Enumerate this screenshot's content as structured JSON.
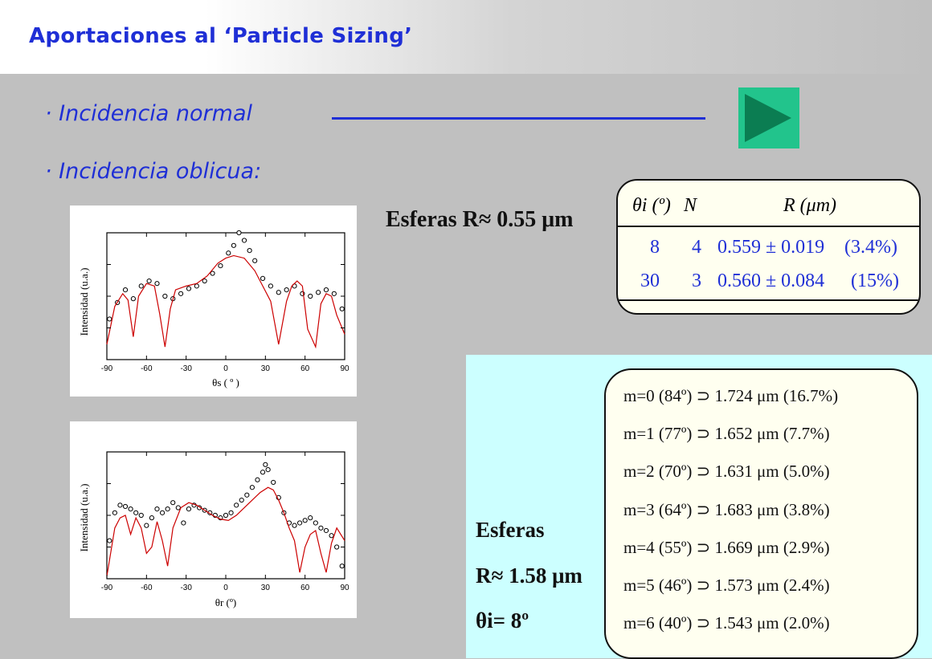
{
  "title": "Aportaciones al ‘Particle Sizing’",
  "bullets": [
    {
      "text": "· Incidencia normal"
    },
    {
      "text": "· Incidencia oblicua:"
    }
  ],
  "play_button": {
    "icon": "play-icon"
  },
  "spheres_small": {
    "label": "Esferas R≈ 0.55 μm"
  },
  "table_small": {
    "headers": [
      "θi (º)",
      "N",
      "R (μm)"
    ],
    "rows": [
      {
        "theta": "8",
        "n": "4",
        "r": "0.559 ± 0.019",
        "pct": "(3.4%)"
      },
      {
        "theta": "30",
        "n": "3",
        "r": "0.560 ± 0.084",
        "pct": "(15%)"
      }
    ]
  },
  "spheres_large": {
    "line1": "Esferas",
    "line2": "R≈ 1.58 μm",
    "line3": "θi= 8º"
  },
  "results": [
    {
      "text": "m=0 (84º) ⊃ 1.724 μm (16.7%)"
    },
    {
      "text": "m=1 (77º) ⊃ 1.652 μm (7.7%)"
    },
    {
      "text": "m=2 (70º) ⊃ 1.631 μm (5.0%)"
    },
    {
      "text": "m=3 (64º) ⊃ 1.683 μm (3.8%)"
    },
    {
      "text": "m=4 (55º) ⊃ 1.669 μm (2.9%)"
    },
    {
      "text": "m=5 (46º) ⊃ 1.573 μm (2.4%)"
    },
    {
      "text": "m=6 (40º) ⊃ 1.543 μm (2.0%)"
    }
  ],
  "chart_data": [
    {
      "type": "scatter",
      "title": "",
      "xlabel": "θs ( º )",
      "ylabel": "Intensidad (u.a.)",
      "xlim": [
        -90,
        90
      ],
      "xticks": [
        "-90",
        "-60",
        "-30",
        "0",
        "30",
        "60",
        "90"
      ],
      "log_y": true,
      "series": [
        {
          "name": "",
          "kind": "markers",
          "color": "#000000",
          "x": [
            -88,
            -82,
            -76,
            -70,
            -64,
            -58,
            -52,
            -46,
            -40,
            -34,
            -28,
            -22,
            -16,
            -10,
            -4,
            2,
            6,
            10,
            14,
            18,
            22,
            28,
            34,
            40,
            46,
            52,
            58,
            64,
            70,
            76,
            82,
            88
          ],
          "y": [
            0.32,
            0.45,
            0.55,
            0.48,
            0.58,
            0.62,
            0.6,
            0.5,
            0.48,
            0.52,
            0.56,
            0.58,
            0.62,
            0.68,
            0.74,
            0.84,
            0.9,
            1.0,
            0.94,
            0.86,
            0.78,
            0.64,
            0.58,
            0.53,
            0.55,
            0.58,
            0.52,
            0.5,
            0.53,
            0.55,
            0.52,
            0.4
          ]
        },
        {
          "name": "",
          "kind": "line",
          "color": "#cc0000",
          "x": [
            -90,
            -84,
            -78,
            -74,
            -70,
            -66,
            -60,
            -54,
            -50,
            -46,
            -42,
            -38,
            -30,
            -22,
            -14,
            -6,
            0,
            6,
            14,
            22,
            28,
            34,
            40,
            46,
            50,
            54,
            58,
            62,
            68,
            72,
            76,
            80,
            84,
            90
          ],
          "y": [
            0.12,
            0.42,
            0.52,
            0.47,
            0.18,
            0.5,
            0.6,
            0.58,
            0.36,
            0.1,
            0.4,
            0.55,
            0.58,
            0.6,
            0.66,
            0.76,
            0.8,
            0.82,
            0.8,
            0.7,
            0.58,
            0.46,
            0.12,
            0.46,
            0.58,
            0.62,
            0.58,
            0.24,
            0.1,
            0.44,
            0.52,
            0.5,
            0.35,
            0.2
          ]
        }
      ]
    },
    {
      "type": "scatter",
      "title": "",
      "xlabel": "θr (º)",
      "ylabel": "Intensidad (u.a.)",
      "xlim": [
        -90,
        90
      ],
      "xticks": [
        "-90",
        "-60",
        "-30",
        "0",
        "30",
        "60",
        "90"
      ],
      "log_y": true,
      "series": [
        {
          "name": "",
          "kind": "markers",
          "color": "#000000",
          "x": [
            -88,
            -84,
            -80,
            -76,
            -72,
            -68,
            -64,
            -60,
            -56,
            -52,
            -48,
            -44,
            -40,
            -36,
            -32,
            -28,
            -24,
            -20,
            -16,
            -12,
            -8,
            -4,
            0,
            4,
            8,
            12,
            16,
            20,
            24,
            28,
            30,
            32,
            36,
            40,
            44,
            48,
            52,
            56,
            60,
            64,
            68,
            72,
            76,
            80,
            84,
            88
          ],
          "y": [
            0.3,
            0.52,
            0.58,
            0.57,
            0.55,
            0.52,
            0.5,
            0.42,
            0.48,
            0.55,
            0.52,
            0.55,
            0.6,
            0.56,
            0.44,
            0.55,
            0.58,
            0.56,
            0.54,
            0.52,
            0.5,
            0.48,
            0.5,
            0.52,
            0.58,
            0.62,
            0.66,
            0.72,
            0.78,
            0.84,
            0.9,
            0.86,
            0.76,
            0.64,
            0.52,
            0.44,
            0.42,
            0.44,
            0.46,
            0.48,
            0.44,
            0.4,
            0.38,
            0.34,
            0.25,
            0.1
          ]
        },
        {
          "name": "",
          "kind": "line",
          "color": "#cc0000",
          "x": [
            -90,
            -84,
            -80,
            -76,
            -72,
            -68,
            -64,
            -60,
            -56,
            -52,
            -48,
            -44,
            -40,
            -34,
            -28,
            -22,
            -16,
            -10,
            -4,
            2,
            8,
            14,
            20,
            26,
            32,
            36,
            40,
            44,
            48,
            52,
            56,
            60,
            64,
            68,
            72,
            76,
            80,
            84,
            90
          ],
          "y": [
            0.02,
            0.4,
            0.48,
            0.5,
            0.35,
            0.48,
            0.4,
            0.2,
            0.25,
            0.45,
            0.3,
            0.1,
            0.4,
            0.56,
            0.6,
            0.58,
            0.54,
            0.5,
            0.47,
            0.46,
            0.5,
            0.56,
            0.62,
            0.68,
            0.72,
            0.7,
            0.62,
            0.52,
            0.4,
            0.3,
            0.05,
            0.25,
            0.35,
            0.38,
            0.2,
            0.05,
            0.28,
            0.4,
            0.3
          ]
        }
      ]
    }
  ]
}
